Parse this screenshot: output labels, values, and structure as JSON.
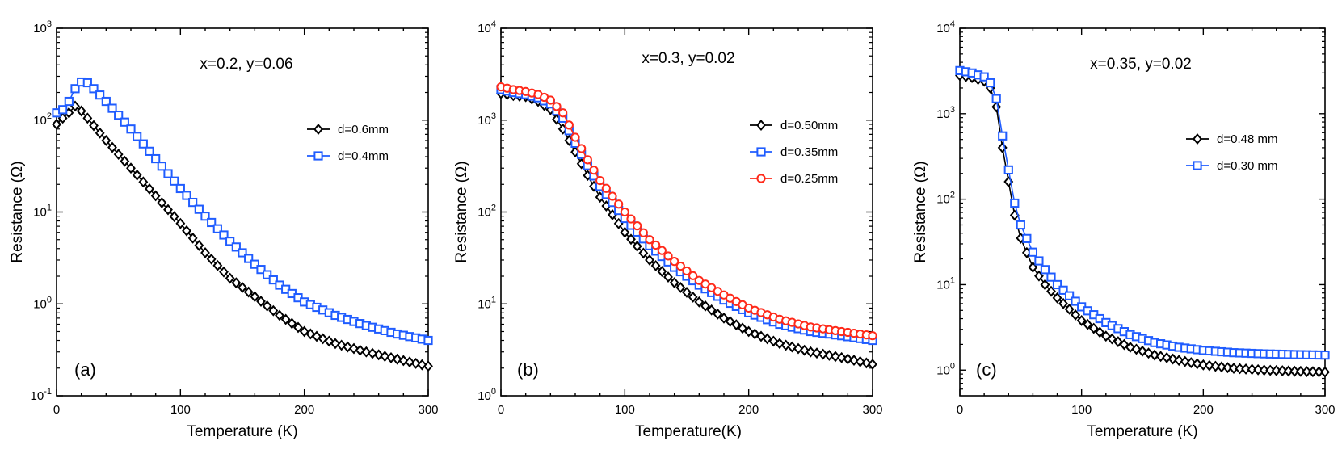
{
  "chart_data": [
    {
      "type": "scatter",
      "panel_label": "(a)",
      "title": "x=0.2, y=0.06",
      "xlabel": "Temperature (K)",
      "ylabel": "Resistance (Ω)",
      "y_scale": "log",
      "xlim": [
        0,
        300
      ],
      "ylim_exp": [
        -1,
        3
      ],
      "x_ticks": [
        "0",
        "100",
        "200",
        "300"
      ],
      "y_tick_exps": [
        "-1",
        "0",
        "1",
        "2",
        "3"
      ],
      "legend_position": "upper-right",
      "series": [
        {
          "name": "d=0.6mm",
          "color": "#000000",
          "marker": "diamond",
          "x": [
            0,
            5,
            10,
            15,
            17,
            25,
            40,
            60,
            80,
            100,
            120,
            140,
            160,
            180,
            200,
            225,
            250,
            275,
            300
          ],
          "y": [
            90,
            105,
            120,
            142,
            140,
            105,
            60,
            30,
            15,
            7.5,
            3.6,
            1.9,
            1.2,
            0.75,
            0.5,
            0.37,
            0.3,
            0.25,
            0.21
          ]
        },
        {
          "name": "d=0.4mm",
          "color": "#1f5cff",
          "marker": "square",
          "x": [
            0,
            5,
            10,
            15,
            20,
            25,
            30,
            40,
            60,
            80,
            100,
            120,
            140,
            160,
            180,
            200,
            225,
            250,
            275,
            300
          ],
          "y": [
            120,
            130,
            160,
            220,
            260,
            255,
            220,
            160,
            80,
            38,
            18,
            9,
            4.8,
            2.7,
            1.6,
            1.05,
            0.75,
            0.58,
            0.47,
            0.4
          ]
        }
      ]
    },
    {
      "type": "scatter",
      "panel_label": "(b)",
      "title": "x=0.3, y=0.02",
      "xlabel": "Temperature(K)",
      "ylabel": "Resistance (Ω)",
      "y_scale": "log",
      "xlim": [
        0,
        300
      ],
      "ylim_exp": [
        0,
        4
      ],
      "x_ticks": [
        "0",
        "100",
        "200",
        "300"
      ],
      "y_tick_exps": [
        "0",
        "1",
        "2",
        "3",
        "4"
      ],
      "legend_position": "right",
      "series": [
        {
          "name": "d=0.50mm",
          "color": "#000000",
          "marker": "diamond",
          "x": [
            0,
            10,
            20,
            30,
            40,
            50,
            60,
            70,
            80,
            100,
            120,
            140,
            160,
            180,
            200,
            225,
            250,
            275,
            300
          ],
          "y": [
            1950,
            1850,
            1800,
            1600,
            1300,
            800,
            450,
            250,
            145,
            60,
            30,
            17,
            10.5,
            7,
            5,
            3.7,
            3,
            2.6,
            2.2
          ]
        },
        {
          "name": "d=0.35mm",
          "color": "#1f5cff",
          "marker": "square",
          "x": [
            0,
            10,
            20,
            30,
            40,
            50,
            60,
            70,
            80,
            100,
            120,
            140,
            160,
            180,
            200,
            225,
            250,
            275,
            300
          ],
          "y": [
            2150,
            2000,
            1900,
            1750,
            1500,
            1050,
            560,
            320,
            190,
            85,
            43,
            25,
            16,
            11,
            8,
            6,
            5,
            4.5,
            4
          ]
        },
        {
          "name": "d=0.25mm",
          "color": "#ff2a1a",
          "marker": "circle",
          "x": [
            0,
            10,
            20,
            30,
            40,
            50,
            60,
            70,
            80,
            100,
            120,
            140,
            160,
            180,
            200,
            225,
            250,
            275,
            300
          ],
          "y": [
            2300,
            2150,
            2050,
            1900,
            1650,
            1200,
            650,
            370,
            220,
            100,
            50,
            29,
            18,
            12.5,
            9,
            6.8,
            5.6,
            5,
            4.5
          ]
        }
      ]
    },
    {
      "type": "scatter",
      "panel_label": "(c)",
      "title": "x=0.35, y=0.02",
      "xlabel": "Temperature (K)",
      "ylabel": "Resistance (Ω)",
      "y_scale": "log",
      "xlim": [
        0,
        300
      ],
      "ylim_exp": [
        -0.3,
        4
      ],
      "x_ticks": [
        "0",
        "100",
        "200",
        "300"
      ],
      "y_tick_exps": [
        "0",
        "1",
        "2",
        "3",
        "4"
      ],
      "legend_position": "right",
      "series": [
        {
          "name": "d=0.48 mm",
          "color": "#000000",
          "marker": "diamond",
          "x": [
            0,
            10,
            20,
            25,
            30,
            35,
            40,
            45,
            50,
            60,
            70,
            80,
            100,
            120,
            140,
            160,
            180,
            200,
            225,
            250,
            275,
            300
          ],
          "y": [
            2800,
            2650,
            2400,
            2000,
            1200,
            400,
            160,
            65,
            35,
            16,
            10,
            7,
            3.8,
            2.5,
            1.85,
            1.5,
            1.3,
            1.15,
            1.05,
            1.0,
            0.97,
            0.95
          ]
        },
        {
          "name": "d=0.30 mm",
          "color": "#1f5cff",
          "marker": "square",
          "x": [
            0,
            10,
            20,
            25,
            30,
            35,
            40,
            45,
            50,
            60,
            70,
            80,
            100,
            120,
            140,
            160,
            180,
            200,
            225,
            250,
            275,
            300
          ],
          "y": [
            3200,
            3000,
            2700,
            2300,
            1500,
            550,
            220,
            90,
            50,
            24,
            15,
            10,
            5.5,
            3.6,
            2.6,
            2.1,
            1.85,
            1.7,
            1.6,
            1.55,
            1.52,
            1.5
          ]
        }
      ]
    }
  ]
}
